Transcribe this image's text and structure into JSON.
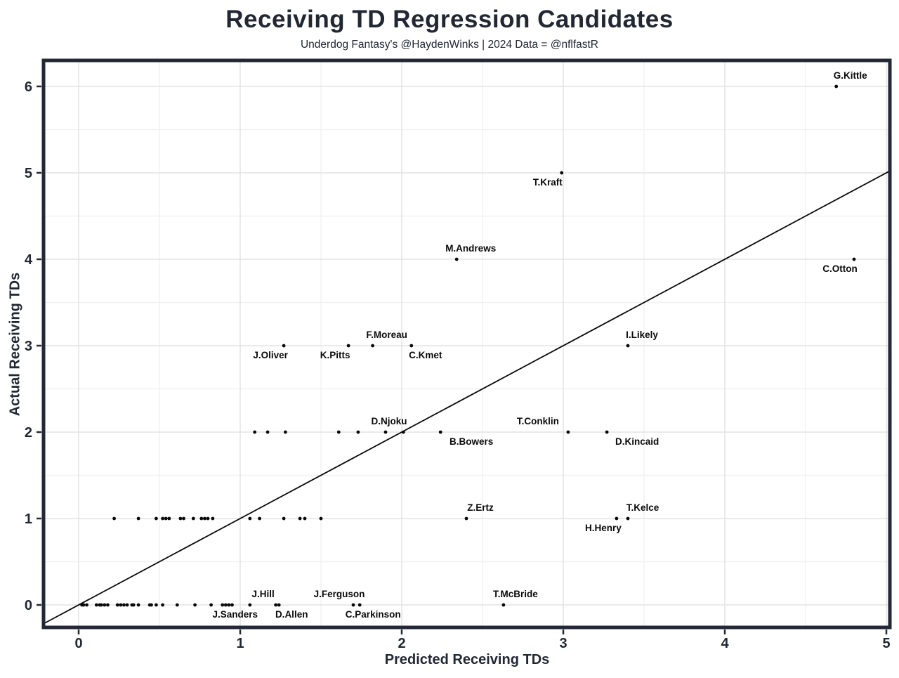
{
  "colors": {
    "text_dark": "#212733",
    "point": "#0a0a0a",
    "label": "#0a0a0a",
    "grid_major": "#e4e4e4",
    "grid_minor": "#f1f1f1",
    "panel_border": "#232834",
    "reference_line": "#0a0a0a",
    "background": "#ffffff"
  },
  "chart_data": {
    "type": "scatter",
    "title": "Receiving TD Regression Candidates",
    "subtitle": "Underdog Fantasy's @HaydenWinks | 2024 Data = @nflfastR",
    "xlabel": "Predicted Receiving TDs",
    "ylabel": "Actual Receiving TDs",
    "xlim": [
      -0.22,
      5.02
    ],
    "ylim": [
      -0.26,
      6.3
    ],
    "x_ticks": [
      0,
      1,
      2,
      3,
      4,
      5
    ],
    "y_ticks": [
      0,
      1,
      2,
      3,
      4,
      5,
      6
    ],
    "x_minor_ticks": [
      0.5,
      1.5,
      2.5,
      3.5,
      4.5
    ],
    "y_minor_ticks": [
      0.5,
      1.5,
      2.5,
      3.5,
      4.5,
      5.5
    ],
    "grid": "major+minor",
    "legend": "none",
    "reference_line": {
      "slope": 1,
      "intercept": 0,
      "style": "solid"
    },
    "points_labeled": [
      {
        "name": "G.Kittle",
        "x": 4.69,
        "y": 6,
        "side": "above",
        "dx": 20
      },
      {
        "name": "T.Kraft",
        "x": 2.99,
        "y": 5,
        "side": "below",
        "dx": -20
      },
      {
        "name": "M.Andrews",
        "x": 2.34,
        "y": 4,
        "side": "above",
        "dx": 20
      },
      {
        "name": "C.Otton",
        "x": 4.8,
        "y": 4,
        "side": "below",
        "dx": -20
      },
      {
        "name": "F.Moreau",
        "x": 1.82,
        "y": 3,
        "side": "above",
        "dx": 20
      },
      {
        "name": "J.Oliver",
        "x": 1.27,
        "y": 3,
        "side": "below",
        "dx": -19
      },
      {
        "name": "K.Pitts",
        "x": 1.67,
        "y": 3,
        "side": "below",
        "dx": -19
      },
      {
        "name": "C.Kmet",
        "x": 2.06,
        "y": 3,
        "side": "below",
        "dx": 20
      },
      {
        "name": "I.Likely",
        "x": 3.4,
        "y": 3,
        "side": "above",
        "dx": 20
      },
      {
        "name": "D.Njoku",
        "x": 1.9,
        "y": 2,
        "side": "above",
        "dx": 5
      },
      {
        "name": "B.Bowers",
        "x": 2.24,
        "y": 2,
        "side": "below",
        "dx": 44
      },
      {
        "name": "T.Conklin",
        "x": 3.03,
        "y": 2,
        "side": "above",
        "dx": -43
      },
      {
        "name": "D.Kincaid",
        "x": 3.27,
        "y": 2,
        "side": "below",
        "dx": 43
      },
      {
        "name": "Z.Ertz",
        "x": 2.4,
        "y": 1,
        "side": "above",
        "dx": 20
      },
      {
        "name": "T.Kelce",
        "x": 3.4,
        "y": 1,
        "side": "above",
        "dx": 21
      },
      {
        "name": "H.Henry",
        "x": 3.33,
        "y": 1,
        "side": "below",
        "dx": -19
      },
      {
        "name": "J.Hill",
        "x": 1.22,
        "y": 0,
        "side": "above",
        "dx": -18
      },
      {
        "name": "D.Allen",
        "x": 1.24,
        "y": 0,
        "side": "below",
        "dx": 18
      },
      {
        "name": "J.Sanders",
        "x": 1.06,
        "y": 0,
        "side": "below",
        "dx": -21
      },
      {
        "name": "J.Ferguson",
        "x": 1.7,
        "y": 0,
        "side": "above",
        "dx": -20
      },
      {
        "name": "C.Parkinson",
        "x": 1.74,
        "y": 0,
        "side": "below",
        "dx": 19
      },
      {
        "name": "T.McBride",
        "x": 2.63,
        "y": 0,
        "side": "above",
        "dx": 17
      }
    ],
    "points_unlabeled": [
      [
        0.02,
        0
      ],
      [
        0.03,
        0
      ],
      [
        0.05,
        0
      ],
      [
        0.11,
        0
      ],
      [
        0.13,
        0
      ],
      [
        0.14,
        0
      ],
      [
        0.16,
        0
      ],
      [
        0.18,
        0
      ],
      [
        0.24,
        0
      ],
      [
        0.26,
        0
      ],
      [
        0.28,
        0
      ],
      [
        0.3,
        0
      ],
      [
        0.33,
        0
      ],
      [
        0.34,
        0
      ],
      [
        0.37,
        0
      ],
      [
        0.44,
        0
      ],
      [
        0.45,
        0
      ],
      [
        0.48,
        0
      ],
      [
        0.52,
        0
      ],
      [
        0.61,
        0
      ],
      [
        0.72,
        0
      ],
      [
        0.82,
        0
      ],
      [
        0.89,
        0
      ],
      [
        0.91,
        0
      ],
      [
        0.93,
        0
      ],
      [
        0.95,
        0
      ],
      [
        0.22,
        1
      ],
      [
        0.37,
        1
      ],
      [
        0.48,
        1
      ],
      [
        0.52,
        1
      ],
      [
        0.54,
        1
      ],
      [
        0.56,
        1
      ],
      [
        0.63,
        1
      ],
      [
        0.65,
        1
      ],
      [
        0.71,
        1
      ],
      [
        0.76,
        1
      ],
      [
        0.78,
        1
      ],
      [
        0.8,
        1
      ],
      [
        0.83,
        1
      ],
      [
        1.06,
        1
      ],
      [
        1.12,
        1
      ],
      [
        1.27,
        1
      ],
      [
        1.37,
        1
      ],
      [
        1.4,
        1
      ],
      [
        1.5,
        1
      ],
      [
        1.09,
        2
      ],
      [
        1.17,
        2
      ],
      [
        1.28,
        2
      ],
      [
        1.61,
        2
      ],
      [
        1.73,
        2
      ],
      [
        2.01,
        2
      ]
    ]
  }
}
